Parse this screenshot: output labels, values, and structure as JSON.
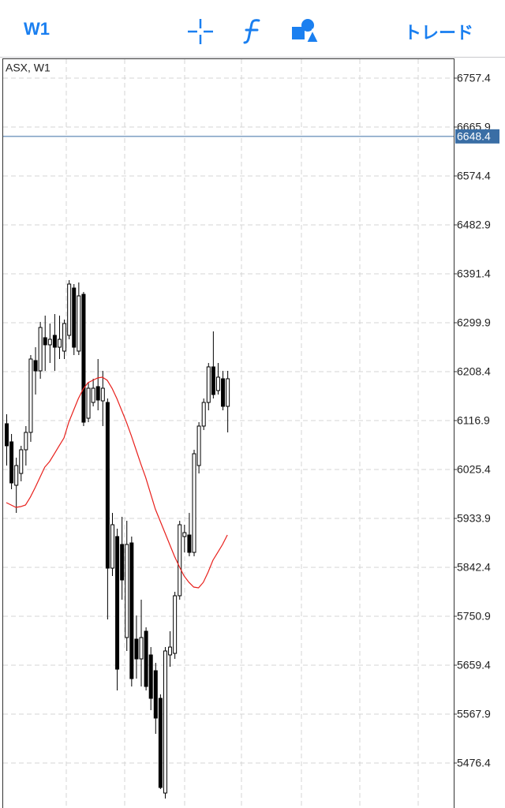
{
  "toolbar": {
    "timeframe": "W1",
    "trade": "トレード"
  },
  "chart_data": {
    "type": "candlestick",
    "title": "ASX, W1",
    "up_color": "#ffffff",
    "down_color": "#000000",
    "open": [
      6111.0,
      6077.1,
      5995.9,
      6018.0,
      6062.3,
      6094.8,
      6229.1,
      6209.9,
      6271.9,
      6258.6,
      6276.3,
      6254.1,
      6246.8,
      6276.3,
      6364.8,
      6246.8,
      6353.0,
      6121.3,
      6150.8,
      6180.4,
      6153.8,
      6150.8,
      5840.9,
      5900.0,
      5885.2,
      5711.1,
      5888.1,
      5708.1,
      5671.2,
      5722.9,
      5678.6,
      5649.1,
      5597.4,
      5420.3,
      5678.6,
      5681.5,
      5789.3,
      5900.0,
      5902.9,
      5870.4,
      6032.8,
      6106.6,
      6150.8,
      6217.3,
      6173.0,
      6195.1,
      6143.5
    ],
    "high": [
      6128.7,
      6091.8,
      6047.5,
      6069.7,
      6106.6,
      6239.4,
      6254.1,
      6301.4,
      6313.2,
      6298.4,
      6316.1,
      6313.2,
      6305.8,
      6379.6,
      6372.2,
      6375.2,
      6357.5,
      6187.7,
      6195.1,
      6232.0,
      6209.9,
      6158.2,
      5944.2,
      5914.7,
      5936.9,
      5929.5,
      5900.0,
      5752.4,
      5781.9,
      5730.2,
      5693.3,
      5663.8,
      5604.8,
      5693.3,
      5722.9,
      5796.7,
      5929.5,
      5922.1,
      5944.2,
      6062.3,
      6113.9,
      6158.2,
      6224.6,
      6283.7,
      6224.6,
      6209.9,
      6209.9
    ],
    "low": [
      6032.8,
      5988.5,
      5944.2,
      6003.3,
      6032.8,
      6077.1,
      6165.6,
      6195.1,
      6209.9,
      6224.6,
      6209.9,
      6232.0,
      6232.0,
      6268.9,
      6239.4,
      6239.4,
      6106.6,
      6113.9,
      6143.5,
      6136.1,
      6106.6,
      5745.0,
      5826.2,
      5612.2,
      5781.9,
      5686.0,
      5619.6,
      5634.3,
      5619.6,
      5612.2,
      5575.3,
      5531.0,
      5427.7,
      5410.0,
      5656.4,
      5671.2,
      5781.9,
      5870.4,
      5863.1,
      5863.1,
      6018.0,
      6099.2,
      6136.1,
      6158.2,
      6165.6,
      6136.1,
      6094.8
    ],
    "close": [
      6069.7,
      6000.3,
      6032.8,
      6062.3,
      6094.8,
      6232.0,
      6209.9,
      6291.0,
      6258.6,
      6268.9,
      6254.1,
      6268.9,
      6298.4,
      6372.2,
      6254.1,
      6350.1,
      6113.9,
      6177.4,
      6177.4,
      6155.3,
      6177.4,
      5840.9,
      5922.1,
      5652.0,
      5818.8,
      5885.2,
      5634.3,
      5671.2,
      5711.1,
      5619.6,
      5597.4,
      5560.5,
      5430.7,
      5686.0,
      5693.3,
      5789.3,
      5922.1,
      5907.3,
      5870.4,
      6054.9,
      6106.6,
      6150.8,
      6217.3,
      6165.6,
      6198.1,
      6143.5,
      6195.1
    ],
    "moving_average": {
      "color": "#e8201c",
      "values": [
        5963.4,
        5959.0,
        5954.6,
        5956.0,
        5959.0,
        5973.7,
        5991.5,
        6010.6,
        6029.8,
        6040.2,
        6054.9,
        6069.7,
        6084.4,
        6113.9,
        6136.1,
        6158.2,
        6175.9,
        6187.7,
        6192.2,
        6196.6,
        6198.1,
        6192.2,
        6177.4,
        6158.2,
        6136.1,
        6113.9,
        6088.9,
        6062.3,
        6035.7,
        6010.6,
        5981.1,
        5951.6,
        5929.5,
        5907.3,
        5885.2,
        5863.1,
        5843.9,
        5826.2,
        5814.4,
        5805.5,
        5804.0,
        5814.4,
        5833.5,
        5855.7,
        5870.4,
        5885.2,
        5902.9
      ]
    },
    "current_price": {
      "value": 6648.4,
      "color": "#3a6ea5"
    },
    "ylim": [
      5392.3,
      6792.8
    ],
    "yticks": [
      6757.4,
      6665.9,
      6574.4,
      6482.9,
      6391.4,
      6299.9,
      6208.4,
      6116.9,
      6025.4,
      5933.9,
      5842.4,
      5750.9,
      5659.4,
      5567.9,
      5476.4
    ],
    "grid": true
  }
}
